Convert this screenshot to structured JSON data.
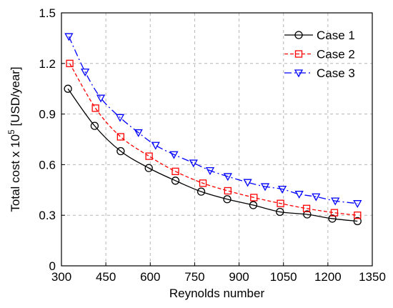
{
  "chart_data": {
    "type": "line",
    "xlabel": "Reynolds number",
    "ylabel_main": "Total cost x 10",
    "ylabel_exp": "5",
    "ylabel_tail": " [USD/year]",
    "xlim": [
      300,
      1350
    ],
    "ylim": [
      0,
      1.5
    ],
    "xticks": [
      300,
      450,
      600,
      750,
      900,
      1050,
      1200,
      1350
    ],
    "yticks": [
      0,
      0.3,
      0.6,
      0.9,
      1.2,
      1.5
    ],
    "xtick_labels": [
      "300",
      "450",
      "600",
      "750",
      "900",
      "1050",
      "1200",
      "1350"
    ],
    "ytick_labels": [
      "0",
      "0.3",
      "0.6",
      "0.9",
      "1.2",
      "1.5"
    ],
    "grid": true,
    "legend_position": "top-right",
    "series": [
      {
        "name": "Case 1",
        "color": "#000000",
        "dash": "solid",
        "marker": "circle",
        "x": [
          322,
          412,
          500,
          595,
          685,
          772,
          860,
          948,
          1038,
          1130,
          1215,
          1300
        ],
        "y": [
          1.05,
          0.83,
          0.68,
          0.58,
          0.505,
          0.44,
          0.395,
          0.36,
          0.32,
          0.305,
          0.28,
          0.265
        ]
      },
      {
        "name": "Case 2",
        "color": "#ff0000",
        "dash": "dash",
        "marker": "square",
        "x": [
          328,
          415,
          500,
          596,
          685,
          778,
          862,
          950,
          1040,
          1128,
          1222,
          1300
        ],
        "y": [
          1.2,
          0.935,
          0.765,
          0.65,
          0.56,
          0.49,
          0.445,
          0.405,
          0.37,
          0.34,
          0.315,
          0.3
        ]
      },
      {
        "name": "Case 3",
        "color": "#0000ff",
        "dash": "dashdot",
        "marker": "triangle-down",
        "x": [
          325,
          380,
          433,
          498,
          560,
          618,
          680,
          746,
          802,
          862,
          929,
          988,
          1046,
          1103,
          1160,
          1225,
          1300
        ],
        "y": [
          1.36,
          1.15,
          0.995,
          0.88,
          0.79,
          0.715,
          0.66,
          0.61,
          0.565,
          0.53,
          0.495,
          0.47,
          0.455,
          0.425,
          0.41,
          0.385,
          0.37
        ]
      }
    ]
  }
}
